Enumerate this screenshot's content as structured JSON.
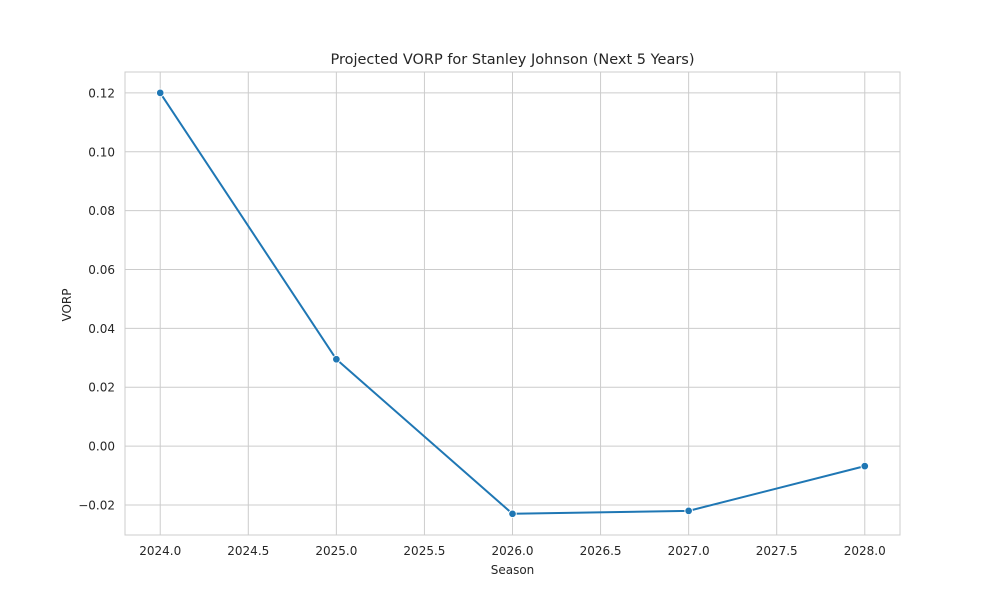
{
  "chart_data": {
    "type": "line",
    "title": "Projected VORP for Stanley Johnson (Next 5 Years)",
    "xlabel": "Season",
    "ylabel": "VORP",
    "x": [
      2024.0,
      2025.0,
      2026.0,
      2027.0,
      2028.0
    ],
    "series": [
      {
        "values": [
          0.12,
          0.0295,
          -0.023,
          -0.022,
          -0.0068
        ],
        "color": "#1f77b4",
        "marker": "circle"
      }
    ],
    "xlim": [
      2023.8,
      2028.2
    ],
    "ylim": [
      -0.0302,
      0.1271
    ],
    "xticks": [
      2024.0,
      2024.5,
      2025.0,
      2025.5,
      2026.0,
      2026.5,
      2027.0,
      2027.5,
      2028.0
    ],
    "xtick_labels": [
      "2024.0",
      "2024.5",
      "2025.0",
      "2025.5",
      "2026.0",
      "2026.5",
      "2027.0",
      "2027.5",
      "2028.0"
    ],
    "yticks": [
      -0.02,
      0.0,
      0.02,
      0.04,
      0.06,
      0.08,
      0.1,
      0.12
    ],
    "ytick_labels": [
      "−0.02",
      "0.00",
      "0.02",
      "0.04",
      "0.06",
      "0.08",
      "0.10",
      "0.12"
    ],
    "grid": true,
    "style": "whitegrid",
    "colors": {
      "line": "#1f77b4",
      "grid": "#cccccc",
      "axes_edge": "#cccccc",
      "text": "#262626"
    }
  }
}
